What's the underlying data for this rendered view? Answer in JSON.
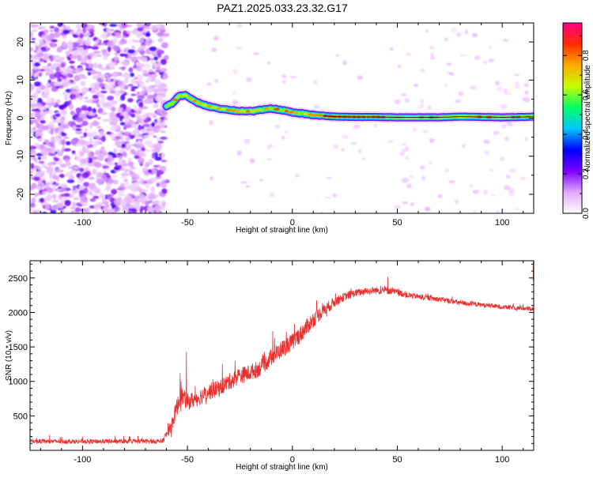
{
  "title": "PAZ1.2025.033.23.32.G17",
  "chart_data": [
    {
      "type": "heatmap",
      "xlabel": "Height of straight line (km)",
      "ylabel": "Frequency (Hz)",
      "xlim": [
        -125,
        115
      ],
      "ylim": [
        -25,
        25
      ],
      "xticks": [
        -100,
        -50,
        0,
        50,
        100
      ],
      "yticks": [
        -20,
        -10,
        0,
        10,
        20
      ],
      "colorbar": {
        "label": "Normalized spectral amplitude",
        "range": [
          0,
          1
        ],
        "ticks": [
          "0.0",
          "0.2",
          "0.4",
          "0.6",
          "0.8"
        ],
        "colors": [
          "#ffffff",
          "#e0a8ff",
          "#7a00ff",
          "#0000ff",
          "#00c8ff",
          "#00ff66",
          "#c8ff00",
          "#ffaa00",
          "#ff2a00",
          "#ff0088"
        ]
      },
      "ridge": {
        "x": [
          -60,
          -57,
          -54,
          -51,
          -48,
          -45,
          -42,
          -38,
          -34,
          -30,
          -25,
          -20,
          -15,
          -11,
          -8,
          -4,
          0,
          5,
          10,
          15,
          20,
          30,
          40,
          50,
          60,
          70,
          80,
          90,
          100,
          110,
          115
        ],
        "y": [
          3,
          4,
          5.8,
          6,
          5,
          4,
          3.4,
          2.9,
          2.4,
          2.1,
          1.8,
          1.8,
          2.2,
          2.5,
          2.4,
          2,
          1.5,
          1.2,
          0.8,
          0.6,
          0.4,
          0.3,
          0.3,
          0.2,
          0.2,
          0.2,
          0.4,
          0.3,
          0.2,
          0.3,
          0.4
        ]
      },
      "noise_region": {
        "x": [
          -125,
          -60
        ],
        "y": [
          -25,
          25
        ]
      }
    },
    {
      "type": "line",
      "xlabel": "Height of straight line (km)",
      "ylabel": "SNR (10 * v/v)",
      "xlim": [
        -125,
        115
      ],
      "ylim": [
        0,
        2750
      ],
      "xticks": [
        -100,
        -50,
        0,
        50,
        100
      ],
      "yticks": [
        500,
        1000,
        1500,
        2000,
        2500
      ],
      "series": [
        {
          "color": "#e8302e",
          "x": [
            -125,
            -100,
            -75,
            -62,
            -58,
            -55,
            -53,
            -50,
            -45,
            -40,
            -35,
            -30,
            -25,
            -20,
            -15,
            -10,
            -5,
            0,
            5,
            10,
            15,
            20,
            25,
            30,
            35,
            40,
            45,
            50,
            55,
            60,
            70,
            80,
            90,
            100,
            110,
            115
          ],
          "y": [
            130,
            130,
            130,
            130,
            330,
            620,
            800,
            700,
            760,
            850,
            900,
            1000,
            1080,
            1130,
            1200,
            1350,
            1470,
            1570,
            1720,
            1900,
            2030,
            2150,
            2230,
            2280,
            2310,
            2320,
            2320,
            2290,
            2250,
            2230,
            2190,
            2140,
            2110,
            2080,
            2060,
            2050
          ],
          "noise": [
            60,
            60,
            60,
            60,
            160,
            250,
            240,
            220,
            220,
            220,
            220,
            220,
            220,
            220,
            220,
            230,
            230,
            230,
            230,
            210,
            170,
            140,
            110,
            100,
            100,
            100,
            100,
            90,
            80,
            70,
            70,
            70,
            60,
            60,
            60,
            60
          ],
          "spikes": [
            {
              "x": -50.5,
              "y": 1430
            },
            {
              "x": -53.5,
              "y": 1120
            },
            {
              "x": -8.5,
              "y": 1630
            },
            {
              "x": 45.5,
              "y": 2520
            }
          ]
        }
      ]
    }
  ]
}
